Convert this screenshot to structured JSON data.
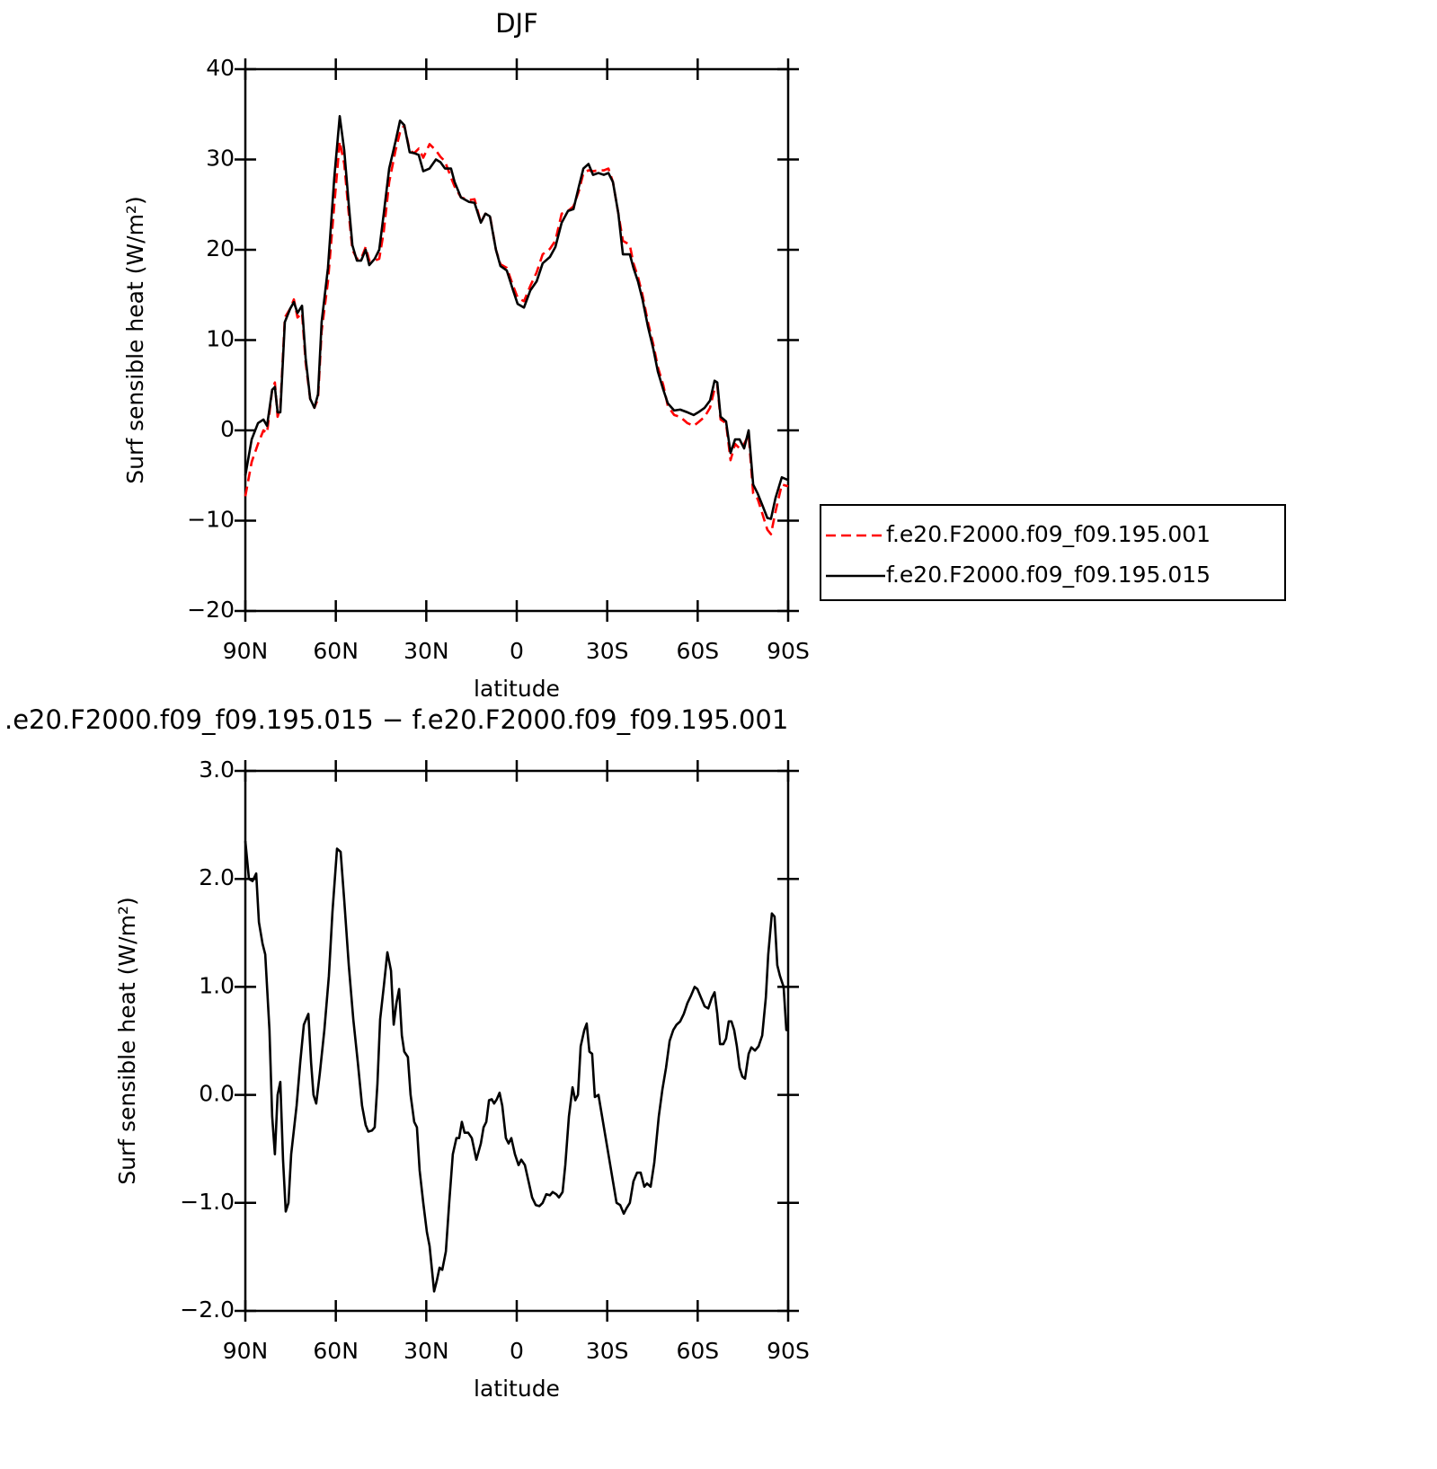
{
  "chart_data": [
    {
      "type": "line",
      "title": "DJF",
      "x_label": "latitude",
      "y_label": "Surf sensible heat (W/m²)",
      "x": [
        90,
        87.9,
        85.8,
        84.0,
        82.8,
        81.1,
        80.2,
        79.3,
        78.4,
        76.9,
        75.1,
        73.9,
        72.7,
        71.2,
        70.0,
        68.5,
        67.1,
        65.9,
        64.7,
        62.6,
        60.5,
        58.7,
        57.2,
        55.7,
        54.5,
        53.0,
        51.6,
        50.1,
        48.9,
        47.1,
        45.6,
        44.1,
        42.3,
        40.2,
        38.7,
        37.3,
        35.5,
        34.0,
        32.5,
        31.0,
        28.9,
        26.8,
        25.3,
        23.8,
        21.8,
        20.6,
        18.5,
        15.8,
        14.0,
        11.9,
        10.4,
        8.9,
        6.9,
        5.4,
        3.3,
        1.2,
        -0.3,
        -2.4,
        -4.5,
        -6.6,
        -8.6,
        -11.0,
        -12.8,
        -14.9,
        -17.0,
        -18.8,
        -20.6,
        -22.1,
        -23.8,
        -25.3,
        -27.1,
        -28.9,
        -30.4,
        -31.9,
        -33.7,
        -35.2,
        -36.7,
        -37.5,
        -38.7,
        -40.2,
        -41.7,
        -43.5,
        -45.3,
        -46.8,
        -48.6,
        -50.1,
        -52.2,
        -54.2,
        -56.6,
        -58.7,
        -60.2,
        -62.3,
        -64.1,
        -65.6,
        -66.5,
        -67.6,
        -69.4,
        -70.9,
        -72.4,
        -73.9,
        -75.4,
        -76.9,
        -78.4,
        -79.9,
        -81.7,
        -83.1,
        -84.3,
        -85.8,
        -87.9,
        -90
      ],
      "series": [
        {
          "name": "f.e20.F2000.f09_f09.195.001",
          "color": "#ff0000",
          "dashed": true,
          "values": [
            -7.3,
            -3.5,
            -1.5,
            0,
            -0.3,
            4.5,
            5.3,
            1.5,
            2.5,
            12.5,
            13.5,
            14.5,
            12.5,
            13,
            7.5,
            3.5,
            2.5,
            3.5,
            11,
            16.5,
            25,
            32,
            29.5,
            24,
            20,
            19,
            19,
            20.3,
            18.8,
            18.8,
            19,
            22,
            27.5,
            31,
            33,
            33.8,
            31,
            30.7,
            31.2,
            30.2,
            31.7,
            31,
            30.3,
            29.8,
            28,
            27,
            25.8,
            25.5,
            25.6,
            23,
            24,
            23.8,
            20,
            18.4,
            18,
            16,
            14.7,
            14.3,
            16,
            17.5,
            19.5,
            20.1,
            21,
            24,
            24.3,
            24.8,
            26.5,
            28.5,
            28.8,
            28.7,
            28.8,
            28.8,
            29,
            27.5,
            24,
            21,
            20.7,
            20.5,
            18.5,
            17,
            15,
            12,
            9.5,
            7,
            5,
            2.7,
            1.7,
            1.5,
            0.8,
            0.5,
            0.9,
            1.5,
            2.5,
            4.6,
            5,
            1.2,
            0.8,
            -3.3,
            -1.5,
            -2,
            -1.5,
            -0.5,
            -7,
            -7.6,
            -9.5,
            -11,
            -11.5,
            -9,
            -6,
            -6.2
          ]
        },
        {
          "name": "f.e20.F2000.f09_f09.195.015",
          "color": "#000000",
          "dashed": false,
          "values": [
            -5,
            -1,
            0.8,
            1.2,
            0.5,
            4.5,
            4.8,
            2,
            2,
            12,
            13.5,
            14.2,
            13,
            13.8,
            8,
            3.5,
            2.5,
            4,
            12,
            18,
            28,
            34.8,
            31,
            25,
            20.5,
            18.8,
            18.8,
            20,
            18.3,
            19,
            20,
            24,
            29,
            32,
            34.3,
            33.8,
            30.8,
            30.7,
            30.5,
            28.7,
            29,
            30,
            29.7,
            29,
            29,
            27.5,
            25.8,
            25.3,
            25.2,
            23,
            24,
            23.7,
            20,
            18.2,
            17.7,
            15.5,
            14,
            13.6,
            15.5,
            16.5,
            18.5,
            19.2,
            20.3,
            23,
            24.3,
            24.5,
            27,
            29,
            29.5,
            28.3,
            28.5,
            28.3,
            28.5,
            27.5,
            24,
            19.5,
            19.5,
            19.5,
            18,
            16.5,
            14.5,
            11.5,
            9,
            6.5,
            4.5,
            3,
            2.2,
            2.3,
            2,
            1.7,
            2,
            2.5,
            3.3,
            5.5,
            5.3,
            1.5,
            1,
            -2.5,
            -1,
            -1,
            -2,
            0,
            -6,
            -7,
            -8.5,
            -9.7,
            -9.8,
            -7.5,
            -5.2,
            -5.5
          ]
        }
      ],
      "xlim": [
        90,
        -90
      ],
      "xticks": [
        {
          "value": 90,
          "label": "90N"
        },
        {
          "value": 60,
          "label": "60N"
        },
        {
          "value": 30,
          "label": "30N"
        },
        0,
        {
          "value": -30,
          "label": "30S"
        },
        {
          "value": -60,
          "label": "60S"
        },
        {
          "value": -90,
          "label": "90S"
        }
      ],
      "ylim": [
        -20,
        40
      ],
      "yticks": [
        {
          "value": -20,
          "label": "−20"
        },
        {
          "value": -10,
          "label": "−10"
        },
        0,
        10,
        20,
        30,
        40
      ],
      "legend": "right"
    },
    {
      "type": "line",
      "title": ".e20.F2000.f09_f09.195.015 − f.e20.F2000.f09_f09.195.001",
      "x_label": "latitude",
      "y_label": "Surf sensible heat (W/m²)",
      "x": [
        90,
        88.8,
        87.6,
        86.4,
        85.5,
        84.3,
        83.4,
        82.0,
        81.1,
        80.2,
        79.3,
        78.4,
        77.5,
        76.6,
        75.7,
        74.8,
        73.0,
        71.8,
        70.6,
        69.1,
        68.2,
        67.4,
        66.5,
        65.3,
        63.8,
        62.3,
        61.1,
        59.6,
        58.4,
        57.2,
        55.7,
        54.2,
        52.7,
        51.3,
        50.1,
        49.2,
        48.0,
        47.1,
        46.2,
        45.3,
        44.1,
        42.9,
        41.7,
        40.8,
        39.9,
        39.0,
        38.1,
        37.3,
        36.1,
        35.2,
        34.0,
        33.1,
        32.2,
        31.0,
        29.8,
        28.9,
        27.4,
        26.5,
        25.6,
        24.7,
        23.5,
        22.4,
        21.2,
        20.0,
        19.1,
        18.2,
        17.3,
        16.1,
        14.9,
        13.4,
        11.9,
        11.0,
        10.1,
        9.2,
        8.3,
        7.5,
        6.6,
        5.7,
        4.8,
        3.6,
        2.7,
        1.8,
        0.6,
        -0.6,
        -1.5,
        -2.7,
        -3.9,
        -5.1,
        -6.3,
        -7.5,
        -8.6,
        -9.8,
        -11.0,
        -11.9,
        -13.1,
        -14.0,
        -15.2,
        -16.1,
        -17.3,
        -18.5,
        -19.4,
        -20.3,
        -21.2,
        -22.4,
        -23.2,
        -24.1,
        -25.0,
        -25.9,
        -27.1,
        -28.3,
        -29.5,
        -30.7,
        -31.9,
        -33.1,
        -34.3,
        -35.5,
        -36.4,
        -37.5,
        -38.7,
        -39.9,
        -41.1,
        -42.3,
        -43.2,
        -44.4,
        -45.6,
        -47.1,
        -48.3,
        -49.5,
        -50.7,
        -51.9,
        -53.0,
        -54.2,
        -55.4,
        -56.6,
        -57.8,
        -59.0,
        -59.9,
        -61.1,
        -62.3,
        -63.5,
        -64.7,
        -65.6,
        -66.5,
        -67.4,
        -68.5,
        -69.4,
        -70.3,
        -71.2,
        -72.1,
        -73.0,
        -73.9,
        -74.8,
        -75.7,
        -76.9,
        -77.8,
        -79.0,
        -80.2,
        -81.4,
        -82.6,
        -83.4,
        -84.6,
        -85.5,
        -86.4,
        -87.3,
        -88.5,
        -89.4,
        -90
      ],
      "series": [
        {
          "color": "#000000",
          "dashed": false,
          "values": [
            2.35,
            2.0,
            1.98,
            2.05,
            1.6,
            1.4,
            1.3,
            0.6,
            -0.2,
            -0.55,
            0.0,
            0.12,
            -0.6,
            -1.08,
            -1.0,
            -0.55,
            -0.1,
            0.3,
            0.65,
            0.75,
            0.3,
            0.0,
            -0.08,
            0.2,
            0.6,
            1.1,
            1.7,
            2.28,
            2.25,
            1.8,
            1.2,
            0.7,
            0.3,
            -0.1,
            -0.28,
            -0.34,
            -0.33,
            -0.3,
            0.1,
            0.7,
            1.0,
            1.32,
            1.15,
            0.65,
            0.85,
            0.98,
            0.55,
            0.4,
            0.35,
            0.0,
            -0.25,
            -0.3,
            -0.7,
            -1.0,
            -1.27,
            -1.4,
            -1.82,
            -1.72,
            -1.6,
            -1.62,
            -1.45,
            -1.0,
            -0.55,
            -0.4,
            -0.4,
            -0.25,
            -0.35,
            -0.35,
            -0.4,
            -0.6,
            -0.45,
            -0.3,
            -0.25,
            -0.05,
            -0.04,
            -0.08,
            -0.04,
            0.02,
            -0.1,
            -0.4,
            -0.45,
            -0.4,
            -0.55,
            -0.65,
            -0.6,
            -0.65,
            -0.8,
            -0.95,
            -1.02,
            -1.03,
            -1.0,
            -0.92,
            -0.93,
            -0.9,
            -0.92,
            -0.95,
            -0.9,
            -0.65,
            -0.2,
            0.07,
            -0.05,
            0.0,
            0.45,
            0.6,
            0.66,
            0.4,
            0.38,
            -0.02,
            0.0,
            -0.2,
            -0.4,
            -0.6,
            -0.8,
            -1.0,
            -1.02,
            -1.1,
            -1.05,
            -1.0,
            -0.8,
            -0.72,
            -0.72,
            -0.85,
            -0.82,
            -0.85,
            -0.63,
            -0.2,
            0.05,
            0.25,
            0.5,
            0.6,
            0.65,
            0.68,
            0.75,
            0.85,
            0.92,
            1.0,
            0.98,
            0.9,
            0.82,
            0.8,
            0.9,
            0.95,
            0.75,
            0.47,
            0.47,
            0.52,
            0.68,
            0.68,
            0.6,
            0.45,
            0.25,
            0.17,
            0.15,
            0.38,
            0.44,
            0.41,
            0.45,
            0.55,
            0.9,
            1.3,
            1.68,
            1.65,
            1.2,
            1.1,
            1.0,
            0.6,
            0.6
          ]
        }
      ],
      "xlim": [
        90,
        -90
      ],
      "xticks": [
        {
          "value": 90,
          "label": "90N"
        },
        {
          "value": 60,
          "label": "60N"
        },
        {
          "value": 30,
          "label": "30N"
        },
        0,
        {
          "value": -30,
          "label": "30S"
        },
        {
          "value": -60,
          "label": "60S"
        },
        {
          "value": -90,
          "label": "90S"
        }
      ],
      "ylim": [
        -2,
        3
      ],
      "yticks": [
        {
          "value": -2,
          "label": "−2.0"
        },
        {
          "value": -1,
          "label": "−1.0"
        },
        {
          "value": 0,
          "label": "0.0"
        },
        {
          "value": 1,
          "label": "1.0"
        },
        {
          "value": 2,
          "label": "2.0"
        },
        {
          "value": 3,
          "label": "3.0"
        }
      ]
    }
  ]
}
